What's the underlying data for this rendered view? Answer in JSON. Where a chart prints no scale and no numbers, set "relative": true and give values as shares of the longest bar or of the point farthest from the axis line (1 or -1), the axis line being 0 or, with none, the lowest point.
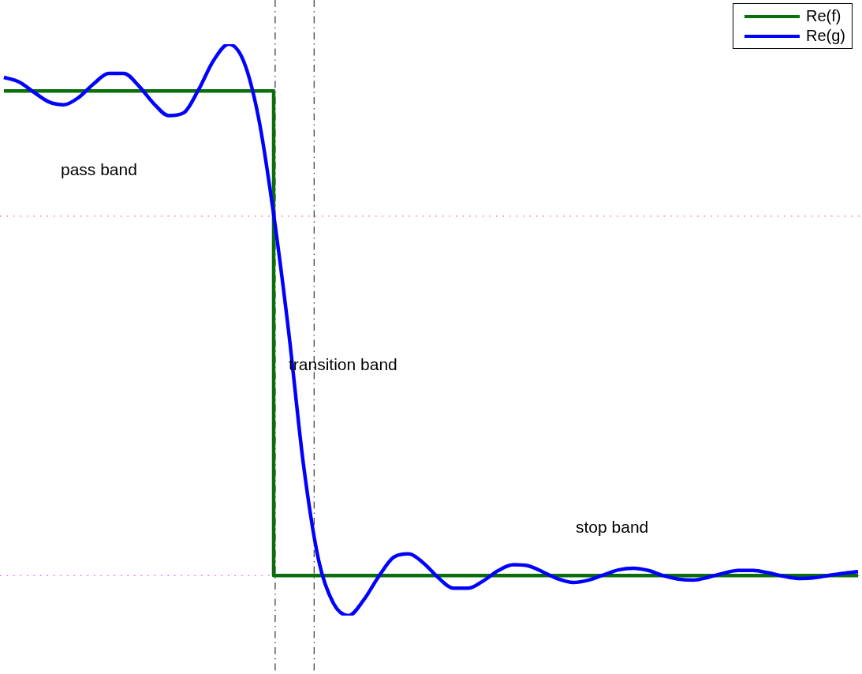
{
  "chart_data": {
    "type": "line",
    "relative": true,
    "categories": [
      null,
      null,
      null,
      null,
      null,
      null,
      null,
      null,
      null,
      null,
      null,
      null,
      null,
      null,
      null,
      null,
      null,
      null,
      null,
      null,
      null,
      null,
      null,
      null,
      null,
      null,
      null,
      null,
      null,
      null,
      null,
      null,
      null,
      null,
      null,
      null,
      null,
      null,
      null,
      null,
      null,
      null,
      null,
      null,
      null,
      null,
      null,
      null,
      null,
      null,
      null,
      null,
      null,
      null,
      null,
      null,
      null,
      null
    ],
    "series": [
      {
        "name": "Re(f)",
        "type": "step",
        "color": "#0a6e0a",
        "values": [
          0.918,
          0.918,
          0.918,
          0.918,
          0.918,
          0.918,
          0.918,
          0.918,
          0.918,
          0.918,
          0.918,
          0.918,
          0.918,
          0.918,
          0.918,
          0.918,
          0.918,
          0.918,
          0.918,
          0.07,
          0.07,
          0.07,
          0.07,
          0.07,
          0.07,
          0.07,
          0.07,
          0.07,
          0.07,
          0.07,
          0.07,
          0.07,
          0.07,
          0.07,
          0.07,
          0.07,
          0.07,
          0.07,
          0.07,
          0.07,
          0.07,
          0.07,
          0.07,
          0.07,
          0.07,
          0.07,
          0.07,
          0.07,
          0.07,
          0.07,
          0.07,
          0.07,
          0.07,
          0.07,
          0.07,
          0.07,
          0.07,
          0.07
        ]
      },
      {
        "name": "Re(g)",
        "type": "line",
        "color": "#0000ff",
        "values": [
          0.942,
          0.934,
          0.916,
          0.899,
          0.894,
          0.907,
          0.931,
          0.949,
          0.949,
          0.927,
          0.896,
          0.875,
          0.88,
          0.921,
          0.972,
          1,
          0.97,
          0.87,
          0.702,
          0.497,
          0.262,
          0.097,
          0.021,
          0,
          0.027,
          0.068,
          0.102,
          0.108,
          0.092,
          0.066,
          0.048,
          0.048,
          0.061,
          0.079,
          0.089,
          0.087,
          0.076,
          0.064,
          0.058,
          0.062,
          0.071,
          0.08,
          0.083,
          0.079,
          0.07,
          0.064,
          0.062,
          0.067,
          0.074,
          0.079,
          0.079,
          0.075,
          0.069,
          0.065,
          0.066,
          0.07,
          0.074,
          0.077
        ]
      }
    ],
    "ref_lines": [
      {
        "axis": "y",
        "value": 0.699,
        "color": "#ff5577",
        "line_style": "dotted"
      },
      {
        "axis": "y",
        "value": 0.07,
        "color": "#ff44ff",
        "line_style": "dotted"
      }
    ],
    "annotations": [
      "pass band",
      "transition band",
      "stop band"
    ],
    "legend": "top right",
    "marker": "none",
    "line_style": "solid"
  }
}
